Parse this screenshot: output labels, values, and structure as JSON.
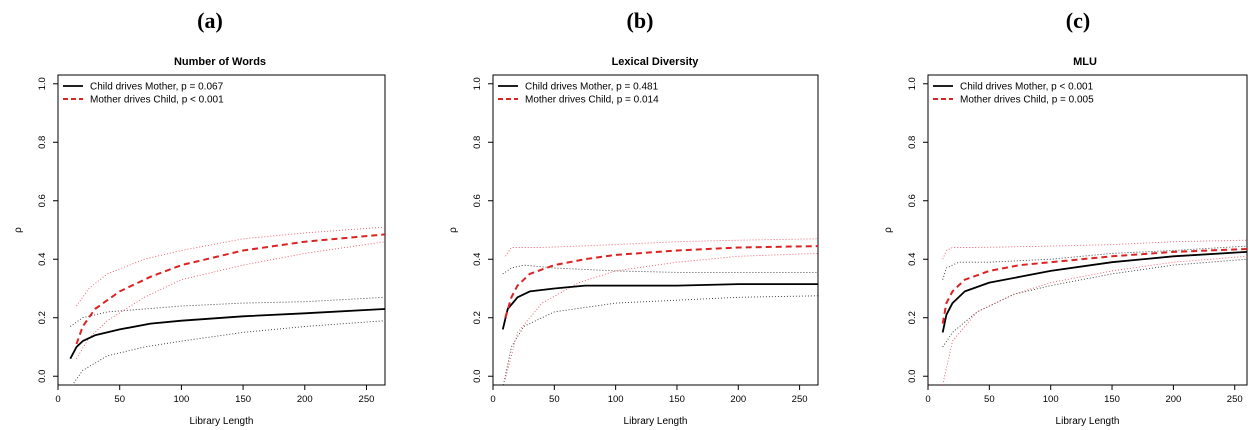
{
  "colors": {
    "child": "#000000",
    "mother": "#dd2222",
    "ci_child": "#333333",
    "ci_mother": "#ee5566"
  },
  "chart_data": [
    {
      "type": "line",
      "panel_label": "(a)",
      "title": "Number of Words",
      "xlabel": "Library Length",
      "ylabel": "ρ",
      "xlim": [
        0,
        265
      ],
      "ylim": [
        -0.03,
        1.03
      ],
      "xticks": [
        "0",
        "50",
        "100",
        "150",
        "200",
        "250"
      ],
      "yticks": [
        "0.0",
        "0.2",
        "0.4",
        "0.6",
        "0.8",
        "1.0"
      ],
      "legend_position": "top-left",
      "series": [
        {
          "name": "Child drives Mother, p = 0.067",
          "role": "child_mean",
          "x": [
            10,
            15,
            20,
            30,
            50,
            75,
            100,
            150,
            200,
            265
          ],
          "y": [
            0.06,
            0.1,
            0.12,
            0.14,
            0.16,
            0.18,
            0.19,
            0.205,
            0.215,
            0.23
          ]
        },
        {
          "name": "Mother drives Child, p < 0.001",
          "role": "mother_mean",
          "x": [
            15,
            20,
            30,
            50,
            75,
            100,
            150,
            200,
            265
          ],
          "y": [
            0.11,
            0.17,
            0.23,
            0.29,
            0.34,
            0.38,
            0.43,
            0.46,
            0.485
          ]
        },
        {
          "role": "child_upper",
          "x": [
            10,
            20,
            40,
            70,
            100,
            150,
            200,
            265
          ],
          "y": [
            0.17,
            0.2,
            0.22,
            0.23,
            0.24,
            0.25,
            0.255,
            0.27
          ]
        },
        {
          "role": "child_lower",
          "x": [
            10,
            20,
            40,
            70,
            100,
            150,
            200,
            265
          ],
          "y": [
            -0.04,
            0.02,
            0.07,
            0.1,
            0.12,
            0.15,
            0.17,
            0.19
          ]
        },
        {
          "role": "mother_upper",
          "x": [
            15,
            25,
            40,
            70,
            100,
            150,
            200,
            265
          ],
          "y": [
            0.24,
            0.3,
            0.35,
            0.4,
            0.43,
            0.47,
            0.49,
            0.51
          ]
        },
        {
          "role": "mother_lower",
          "x": [
            15,
            25,
            40,
            70,
            100,
            150,
            200,
            265
          ],
          "y": [
            0.06,
            0.13,
            0.19,
            0.27,
            0.33,
            0.38,
            0.42,
            0.46
          ]
        }
      ]
    },
    {
      "type": "line",
      "panel_label": "(b)",
      "title": "Lexical Diversity",
      "xlabel": "Library Length",
      "ylabel": "ρ",
      "xlim": [
        0,
        265
      ],
      "ylim": [
        -0.03,
        1.03
      ],
      "xticks": [
        "0",
        "50",
        "100",
        "150",
        "200",
        "250"
      ],
      "yticks": [
        "0.0",
        "0.2",
        "0.4",
        "0.6",
        "0.8",
        "1.0"
      ],
      "legend_position": "top-left",
      "series": [
        {
          "name": "Child drives Mother, p = 0.481",
          "role": "child_mean",
          "x": [
            8,
            12,
            20,
            30,
            50,
            75,
            100,
            150,
            200,
            265
          ],
          "y": [
            0.16,
            0.23,
            0.27,
            0.29,
            0.3,
            0.31,
            0.31,
            0.31,
            0.315,
            0.315
          ]
        },
        {
          "name": "Mother drives Child, p = 0.014",
          "role": "mother_mean",
          "x": [
            10,
            15,
            20,
            30,
            50,
            75,
            100,
            150,
            200,
            265
          ],
          "y": [
            0.2,
            0.27,
            0.31,
            0.35,
            0.38,
            0.4,
            0.415,
            0.43,
            0.44,
            0.445
          ]
        },
        {
          "role": "child_upper",
          "x": [
            8,
            15,
            25,
            50,
            100,
            150,
            200,
            265
          ],
          "y": [
            0.35,
            0.37,
            0.38,
            0.37,
            0.36,
            0.355,
            0.355,
            0.355
          ]
        },
        {
          "role": "child_lower",
          "x": [
            8,
            15,
            25,
            50,
            100,
            150,
            200,
            265
          ],
          "y": [
            -0.04,
            0.1,
            0.17,
            0.22,
            0.25,
            0.26,
            0.27,
            0.275
          ]
        },
        {
          "role": "mother_upper",
          "x": [
            10,
            15,
            20,
            40,
            100,
            150,
            200,
            265
          ],
          "y": [
            0.41,
            0.44,
            0.44,
            0.44,
            0.45,
            0.46,
            0.465,
            0.47
          ]
        },
        {
          "role": "mother_lower",
          "x": [
            10,
            20,
            40,
            70,
            100,
            150,
            200,
            265
          ],
          "y": [
            -0.01,
            0.15,
            0.25,
            0.32,
            0.36,
            0.39,
            0.41,
            0.42
          ]
        }
      ]
    },
    {
      "type": "line",
      "panel_label": "(c)",
      "title": "MLU",
      "xlabel": "Library Length",
      "ylabel": "ρ",
      "xlim": [
        0,
        260
      ],
      "ylim": [
        -0.03,
        1.03
      ],
      "xticks": [
        "0",
        "50",
        "100",
        "150",
        "200",
        "250"
      ],
      "yticks": [
        "0.0",
        "0.2",
        "0.4",
        "0.6",
        "0.8",
        "1.0"
      ],
      "legend_position": "top-left",
      "series": [
        {
          "name": "Child drives Mother, p < 0.001",
          "role": "child_mean",
          "x": [
            12,
            15,
            20,
            30,
            50,
            75,
            100,
            150,
            200,
            260
          ],
          "y": [
            0.15,
            0.21,
            0.25,
            0.29,
            0.32,
            0.34,
            0.36,
            0.39,
            0.41,
            0.425
          ]
        },
        {
          "name": "Mother drives Child, p = 0.005",
          "role": "mother_mean",
          "x": [
            12,
            15,
            20,
            30,
            50,
            75,
            100,
            150,
            200,
            260
          ],
          "y": [
            0.18,
            0.25,
            0.29,
            0.33,
            0.36,
            0.38,
            0.39,
            0.41,
            0.425,
            0.435
          ]
        },
        {
          "role": "child_upper",
          "x": [
            12,
            15,
            25,
            50,
            100,
            150,
            200,
            260
          ],
          "y": [
            0.33,
            0.37,
            0.39,
            0.39,
            0.4,
            0.42,
            0.43,
            0.445
          ]
        },
        {
          "role": "child_lower",
          "x": [
            12,
            20,
            40,
            70,
            100,
            150,
            200,
            260
          ],
          "y": [
            0.1,
            0.15,
            0.22,
            0.28,
            0.31,
            0.35,
            0.38,
            0.4
          ]
        },
        {
          "role": "mother_upper",
          "x": [
            12,
            15,
            20,
            40,
            100,
            150,
            200,
            260
          ],
          "y": [
            0.4,
            0.43,
            0.44,
            0.44,
            0.445,
            0.45,
            0.46,
            0.465
          ]
        },
        {
          "role": "mother_lower",
          "x": [
            12,
            20,
            40,
            70,
            100,
            150,
            200,
            260
          ],
          "y": [
            -0.03,
            0.12,
            0.22,
            0.28,
            0.32,
            0.36,
            0.39,
            0.41
          ]
        }
      ]
    }
  ]
}
